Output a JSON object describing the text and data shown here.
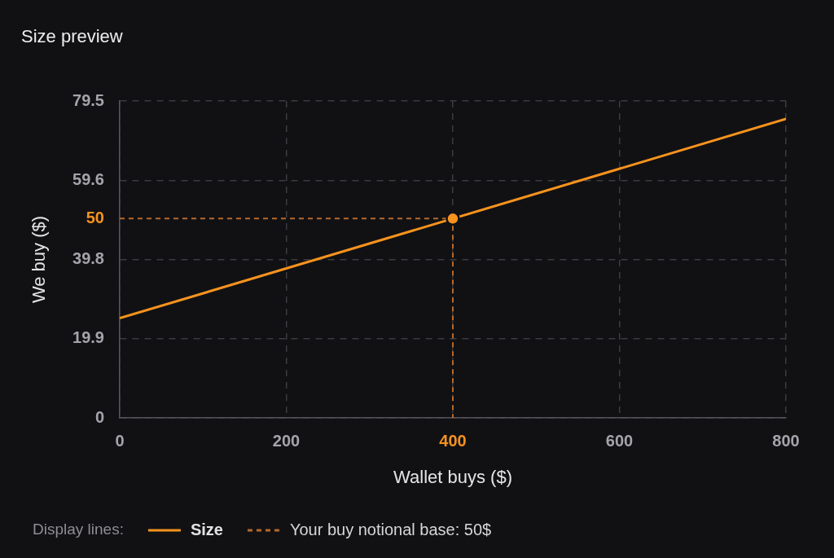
{
  "chart_data": {
    "type": "line",
    "title": "Size preview",
    "xlabel": "Wallet buys ($)",
    "ylabel": "We buy ($)",
    "legend_title": "Display lines:",
    "series": [
      {
        "name": "Size",
        "type": "line",
        "color": "#f7931e",
        "x": [
          0,
          400,
          800
        ],
        "values": [
          25,
          50,
          75
        ]
      },
      {
        "name": "Your buy notional base: 50$",
        "type": "line",
        "line_style": "dashed",
        "color": "#b5692b",
        "x": [
          0,
          400,
          400
        ],
        "values": [
          50,
          50,
          0
        ]
      },
      {
        "type": "scatter",
        "marker": "circle",
        "color": "#f7931e",
        "x": [
          400
        ],
        "values": [
          50
        ]
      }
    ],
    "xlim": [
      0,
      800
    ],
    "ylim": [
      0,
      79.5
    ],
    "xticks": [
      0,
      200,
      400,
      600,
      800
    ],
    "yticks": [
      0,
      19.9,
      39.8,
      50,
      59.6,
      79.5
    ],
    "grid": true,
    "legend": "bottom"
  }
}
